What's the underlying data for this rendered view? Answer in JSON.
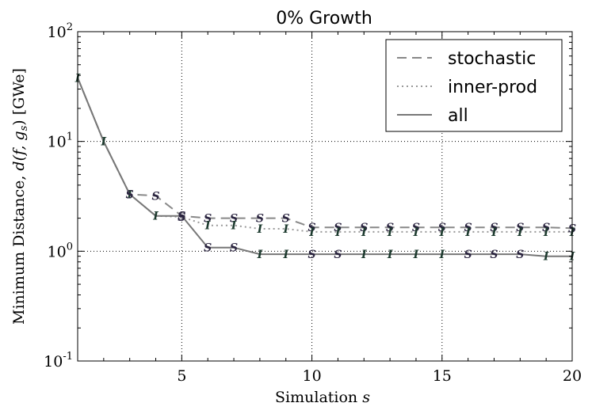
{
  "chart_data": {
    "type": "line",
    "title": "0% Growth",
    "xlabel": "Simulation",
    "xlabel_var": "s",
    "ylabel": "Minimum Distance,",
    "ylabel_math": "d(f, g",
    "ylabel_sub": "s",
    "ylabel_close": ")",
    "ylabel_unit": "[GWe]",
    "y_scale": "log",
    "xlim": [
      1,
      20
    ],
    "ylim": [
      0.1,
      100
    ],
    "x_ticks": [
      5,
      10,
      15,
      20
    ],
    "x_tick_labels": [
      "5",
      "10",
      "15",
      "20"
    ],
    "y_ticks": [
      {
        "value": 100,
        "base": "10",
        "exp": "2"
      },
      {
        "value": 10,
        "base": "10",
        "exp": "1"
      },
      {
        "value": 1,
        "base": "10",
        "exp": "0"
      },
      {
        "value": 0.1,
        "base": "10",
        "exp": "-1"
      }
    ],
    "grid": true,
    "legend_position": "top-right",
    "x": [
      1,
      2,
      3,
      4,
      5,
      6,
      7,
      8,
      9,
      10,
      11,
      12,
      13,
      14,
      15,
      16,
      17,
      18,
      19,
      20
    ],
    "series": [
      {
        "name": "stochastic",
        "style": "dashed",
        "color": "#888888",
        "values": [
          38,
          10,
          3.3,
          3.2,
          2.1,
          2.0,
          2.0,
          2.0,
          2.0,
          1.65,
          1.65,
          1.65,
          1.65,
          1.65,
          1.65,
          1.65,
          1.65,
          1.65,
          1.65,
          1.62
        ]
      },
      {
        "name": "inner-prod",
        "style": "dotted",
        "color": "#999999",
        "values": [
          38,
          10,
          3.3,
          2.1,
          2.05,
          1.72,
          1.72,
          1.6,
          1.6,
          1.5,
          1.5,
          1.5,
          1.5,
          1.5,
          1.5,
          1.5,
          1.5,
          1.5,
          1.5,
          1.5
        ]
      },
      {
        "name": "all",
        "style": "solid",
        "color": "#777777",
        "values": [
          38,
          10,
          3.3,
          2.1,
          2.1,
          1.08,
          1.08,
          0.94,
          0.94,
          0.94,
          0.94,
          0.94,
          0.94,
          0.94,
          0.94,
          0.94,
          0.94,
          0.94,
          0.9,
          0.9
        ]
      }
    ],
    "markers": [
      {
        "series": "stochastic",
        "x": 1,
        "label": "I"
      },
      {
        "series": "stochastic",
        "x": 2,
        "label": "I"
      },
      {
        "series": "stochastic",
        "x": 3,
        "label": "I"
      },
      {
        "series": "stochastic",
        "x": 4,
        "label": "S"
      },
      {
        "series": "stochastic",
        "x": 5,
        "label": "S"
      },
      {
        "series": "stochastic",
        "x": 6,
        "label": "S"
      },
      {
        "series": "stochastic",
        "x": 7,
        "label": "S"
      },
      {
        "series": "stochastic",
        "x": 8,
        "label": "S"
      },
      {
        "series": "stochastic",
        "x": 9,
        "label": "S"
      },
      {
        "series": "stochastic",
        "x": 10,
        "label": "S"
      },
      {
        "series": "stochastic",
        "x": 11,
        "label": "S"
      },
      {
        "series": "stochastic",
        "x": 12,
        "label": "S"
      },
      {
        "series": "stochastic",
        "x": 13,
        "label": "S"
      },
      {
        "series": "stochastic",
        "x": 14,
        "label": "S"
      },
      {
        "series": "stochastic",
        "x": 15,
        "label": "S"
      },
      {
        "series": "stochastic",
        "x": 16,
        "label": "S"
      },
      {
        "series": "stochastic",
        "x": 17,
        "label": "S"
      },
      {
        "series": "stochastic",
        "x": 18,
        "label": "S"
      },
      {
        "series": "stochastic",
        "x": 19,
        "label": "S"
      },
      {
        "series": "stochastic",
        "x": 20,
        "label": "S"
      },
      {
        "series": "inner-prod",
        "x": 3,
        "label": "S"
      },
      {
        "series": "inner-prod",
        "x": 4,
        "label": "I"
      },
      {
        "series": "inner-prod",
        "x": 5,
        "label": "S"
      },
      {
        "series": "inner-prod",
        "x": 6,
        "label": "I"
      },
      {
        "series": "inner-prod",
        "x": 7,
        "label": "I"
      },
      {
        "series": "inner-prod",
        "x": 8,
        "label": "I"
      },
      {
        "series": "inner-prod",
        "x": 9,
        "label": "I"
      },
      {
        "series": "inner-prod",
        "x": 10,
        "label": "I"
      },
      {
        "series": "inner-prod",
        "x": 11,
        "label": "I"
      },
      {
        "series": "inner-prod",
        "x": 12,
        "label": "I"
      },
      {
        "series": "inner-prod",
        "x": 13,
        "label": "I"
      },
      {
        "series": "inner-prod",
        "x": 14,
        "label": "I"
      },
      {
        "series": "inner-prod",
        "x": 15,
        "label": "I"
      },
      {
        "series": "inner-prod",
        "x": 16,
        "label": "I"
      },
      {
        "series": "inner-prod",
        "x": 17,
        "label": "I"
      },
      {
        "series": "inner-prod",
        "x": 18,
        "label": "I"
      },
      {
        "series": "inner-prod",
        "x": 19,
        "label": "I"
      },
      {
        "series": "inner-prod",
        "x": 20,
        "label": "I"
      },
      {
        "series": "all",
        "x": 5,
        "label": "S"
      },
      {
        "series": "all",
        "x": 6,
        "label": "S"
      },
      {
        "series": "all",
        "x": 7,
        "label": "S"
      },
      {
        "series": "all",
        "x": 8,
        "label": "I"
      },
      {
        "series": "all",
        "x": 9,
        "label": "I"
      },
      {
        "series": "all",
        "x": 10,
        "label": "S"
      },
      {
        "series": "all",
        "x": 11,
        "label": "S"
      },
      {
        "series": "all",
        "x": 12,
        "label": "I"
      },
      {
        "series": "all",
        "x": 13,
        "label": "I"
      },
      {
        "series": "all",
        "x": 14,
        "label": "I"
      },
      {
        "series": "all",
        "x": 15,
        "label": "I"
      },
      {
        "series": "all",
        "x": 16,
        "label": "S"
      },
      {
        "series": "all",
        "x": 17,
        "label": "S"
      },
      {
        "series": "all",
        "x": 18,
        "label": "S"
      },
      {
        "series": "all",
        "x": 19,
        "label": "I"
      },
      {
        "series": "all",
        "x": 20,
        "label": "I"
      }
    ],
    "marker_colors": {
      "S": "#2b2540",
      "I": "#1c3a2e"
    }
  }
}
